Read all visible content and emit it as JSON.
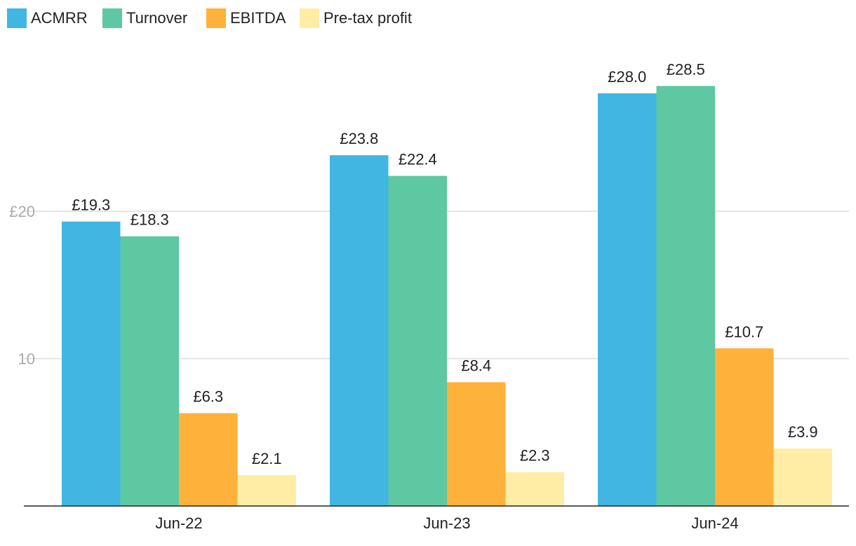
{
  "chart_data": {
    "type": "bar",
    "title": "",
    "xlabel": "",
    "ylabel": "",
    "categories": [
      "Jun-22",
      "Jun-23",
      "Jun-24"
    ],
    "series": [
      {
        "name": "ACMRR",
        "color": "#41b6e2",
        "values": [
          19.3,
          23.8,
          28.0
        ],
        "labels": [
          "£19.3",
          "£23.8",
          "£28.0"
        ]
      },
      {
        "name": "Turnover",
        "color": "#5dc8a2",
        "values": [
          18.3,
          22.4,
          28.5
        ],
        "labels": [
          "£18.3",
          "£22.4",
          "£28.5"
        ]
      },
      {
        "name": "EBITDA",
        "color": "#feb13b",
        "values": [
          6.3,
          8.4,
          10.7
        ],
        "labels": [
          "£6.3",
          "£8.4",
          "£10.7"
        ]
      },
      {
        "name": "Pre-tax profit",
        "color": "#ffeda5",
        "values": [
          2.1,
          2.3,
          3.9
        ],
        "labels": [
          "£2.1",
          "£2.3",
          "£3.9"
        ]
      }
    ],
    "yticks": [
      10,
      20
    ],
    "ytick_labels": [
      "10",
      "£20"
    ],
    "ylim": [
      0,
      30
    ],
    "grid": true,
    "legend_position": "top-left"
  }
}
